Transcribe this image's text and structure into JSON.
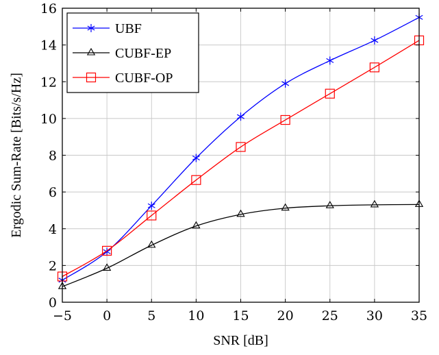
{
  "chart_data": {
    "type": "line",
    "title": "",
    "xlabel": "SNR [dB]",
    "ylabel": "Ergodic Sum-Rate [Bits/s/Hz]",
    "x": [
      -5,
      0,
      5,
      10,
      15,
      20,
      25,
      30,
      35
    ],
    "xlim": [
      -5,
      35
    ],
    "ylim": [
      0,
      16
    ],
    "xticks": [
      -5,
      0,
      5,
      10,
      15,
      20,
      25,
      30,
      35
    ],
    "xtick_labels": [
      "−5",
      "0",
      "5",
      "10",
      "15",
      "20",
      "25",
      "30",
      "35"
    ],
    "yticks": [
      0,
      2,
      4,
      6,
      8,
      10,
      12,
      14,
      16
    ],
    "ytick_labels": [
      "0",
      "2",
      "4",
      "6",
      "8",
      "10",
      "12",
      "14",
      "16"
    ],
    "grid": true,
    "legend_position": "top-left",
    "series": [
      {
        "name": "UBF",
        "color": "#0000ff",
        "marker": "asterisk",
        "values": [
          1.2,
          2.75,
          5.25,
          7.85,
          10.1,
          11.9,
          13.15,
          14.25,
          15.5
        ]
      },
      {
        "name": "CUBF-EP",
        "color": "#000000",
        "marker": "triangle",
        "values": [
          0.85,
          1.85,
          3.1,
          4.15,
          4.78,
          5.12,
          5.25,
          5.3,
          5.32
        ]
      },
      {
        "name": "CUBF-OP",
        "color": "#ff0000",
        "marker": "square",
        "values": [
          1.4,
          2.8,
          4.72,
          6.65,
          8.45,
          9.92,
          11.35,
          12.78,
          14.25
        ]
      }
    ]
  }
}
